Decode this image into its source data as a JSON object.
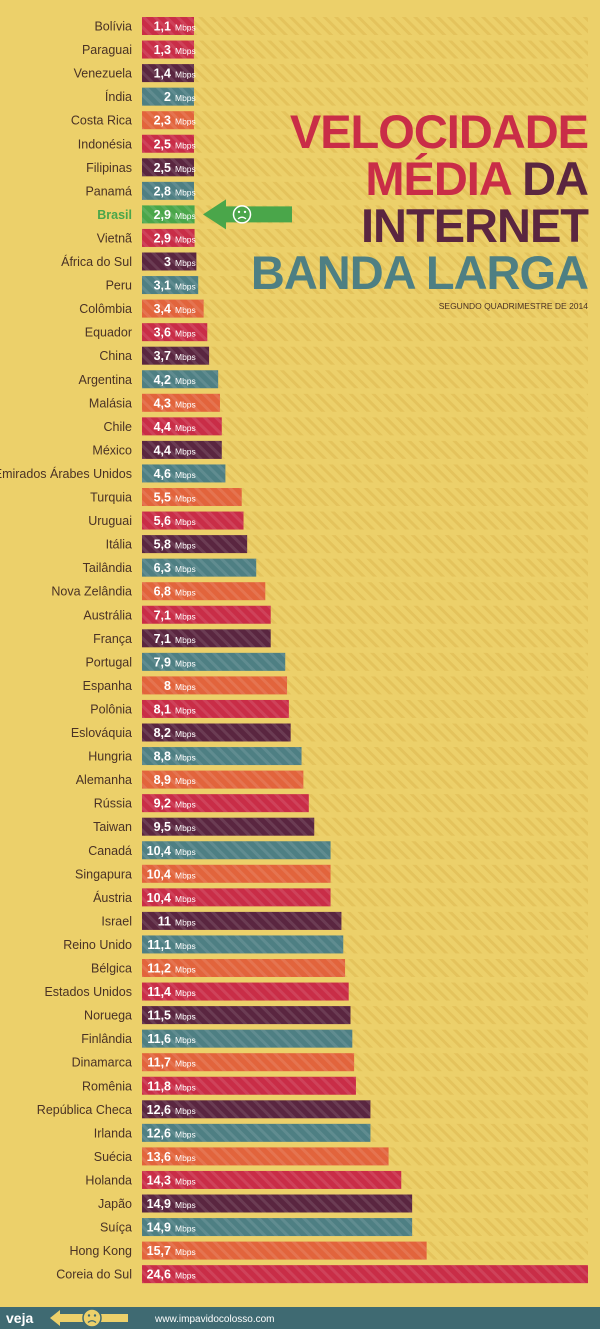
{
  "colors": {
    "background": "#ecd06a",
    "stripe": "#e4c35c",
    "teal": "#4e7f83",
    "orange": "#e2643c",
    "crimson": "#c92d47",
    "plum": "#5a2640",
    "highlight_green": "#4aa64a",
    "footer": "#3f6a72"
  },
  "title": {
    "lines": [
      {
        "parts": [
          {
            "text": "VELOCIDADE",
            "color": "#c92d47"
          }
        ]
      },
      {
        "parts": [
          {
            "text": "MÉDIA",
            "color": "#c92d47"
          },
          {
            "text": " DA",
            "color": "#5a2640"
          }
        ]
      },
      {
        "parts": [
          {
            "text": "INTERNET",
            "color": "#5a2640"
          }
        ]
      },
      {
        "parts": [
          {
            "text": "BANDA LARGA",
            "color": "#4e7f83"
          }
        ]
      }
    ],
    "subtitle": "SEGUNDO QUADRIMESTRE DE 2014"
  },
  "footer": {
    "brand": "veja",
    "url": "www.impavidocolosso.com",
    "face": "sad-face"
  },
  "chart_data": {
    "type": "bar",
    "orientation": "horizontal",
    "unit": "Mbps",
    "highlight": "Brasil",
    "categories": [
      "Bolívia",
      "Paraguai",
      "Venezuela",
      "Índia",
      "Costa Rica",
      "Indonésia",
      "Filipinas",
      "Panamá",
      "Brasil",
      "Vietnã",
      "África do Sul",
      "Peru",
      "Colômbia",
      "Equador",
      "China",
      "Argentina",
      "Malásia",
      "Chile",
      "México",
      "Emirados Árabes Unidos",
      "Turquia",
      "Uruguai",
      "Itália",
      "Tailândia",
      "Nova Zelândia",
      "Austrália",
      "França",
      "Portugal",
      "Espanha",
      "Polônia",
      "Eslováquia",
      "Hungria",
      "Alemanha",
      "Rússia",
      "Taiwan",
      "Canadá",
      "Singapura",
      "Áustria",
      "Israel",
      "Reino Unido",
      "Bélgica",
      "Estados Unidos",
      "Noruega",
      "Finlândia",
      "Dinamarca",
      "Romênia",
      "República Checa",
      "Irlanda",
      "Suécia",
      "Holanda",
      "Japão",
      "Suíça",
      "Hong Kong",
      "Coreia do Sul"
    ],
    "values": [
      1.1,
      1.3,
      1.4,
      2,
      2.3,
      2.5,
      2.5,
      2.8,
      2.9,
      2.9,
      3,
      3.1,
      3.4,
      3.6,
      3.7,
      4.2,
      4.3,
      4.4,
      4.4,
      4.6,
      5.5,
      5.6,
      5.8,
      6.3,
      6.8,
      7.1,
      7.1,
      7.9,
      8,
      8.1,
      8.2,
      8.8,
      8.9,
      9.2,
      9.5,
      10.4,
      10.4,
      10.4,
      11,
      11.1,
      11.2,
      11.4,
      11.5,
      11.6,
      11.7,
      11.8,
      12.6,
      12.6,
      13.6,
      14.3,
      14.9,
      14.9,
      15.7,
      24.6
    ],
    "value_labels": [
      "1,1",
      "1,3",
      "1,4",
      "2",
      "2,3",
      "2,5",
      "2,5",
      "2,8",
      "2,9",
      "2,9",
      "3",
      "3,1",
      "3,4",
      "3,6",
      "3,7",
      "4,2",
      "4,3",
      "4,4",
      "4,4",
      "4,6",
      "5,5",
      "5,6",
      "5,8",
      "6,3",
      "6,8",
      "7,1",
      "7,1",
      "7,9",
      "8",
      "8,1",
      "8,2",
      "8,8",
      "8,9",
      "9,2",
      "9,5",
      "10,4",
      "10,4",
      "10,4",
      "11",
      "11,1",
      "11,2",
      "11,4",
      "11,5",
      "11,6",
      "11,7",
      "11,8",
      "12,6",
      "12,6",
      "13,6",
      "14,3",
      "14,9",
      "14,9",
      "15,7",
      "24,6"
    ],
    "bar_colors": [
      "#c92d47",
      "#c92d47",
      "#5a2640",
      "#4e7f83",
      "#e2643c",
      "#c92d47",
      "#5a2640",
      "#4e7f83",
      "#4aa64a",
      "#c92d47",
      "#5a2640",
      "#4e7f83",
      "#e2643c",
      "#c92d47",
      "#5a2640",
      "#4e7f83",
      "#e2643c",
      "#c92d47",
      "#5a2640",
      "#4e7f83",
      "#e2643c",
      "#c92d47",
      "#5a2640",
      "#4e7f83",
      "#e2643c",
      "#c92d47",
      "#5a2640",
      "#4e7f83",
      "#e2643c",
      "#c92d47",
      "#5a2640",
      "#4e7f83",
      "#e2643c",
      "#c92d47",
      "#5a2640",
      "#4e7f83",
      "#e2643c",
      "#c92d47",
      "#5a2640",
      "#4e7f83",
      "#e2643c",
      "#c92d47",
      "#5a2640",
      "#4e7f83",
      "#e2643c",
      "#c92d47",
      "#5a2640",
      "#4e7f83",
      "#e2643c",
      "#c92d47",
      "#5a2640",
      "#4e7f83",
      "#e2643c",
      "#c92d47"
    ],
    "xlim": [
      0,
      24.6
    ],
    "grid": false
  }
}
